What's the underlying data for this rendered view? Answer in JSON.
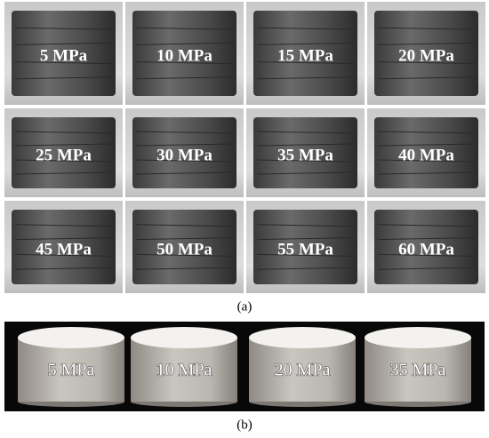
{
  "panel_a": {
    "labels": [
      "5 MPa",
      "10 MPa",
      "15 MPa",
      "20 MPa",
      "25 MPa",
      "30 MPa",
      "35 MPa",
      "40 MPa",
      "45 MPa",
      "50 MPa",
      "55 MPa",
      "60 MPa"
    ],
    "caption": "(a)"
  },
  "panel_b": {
    "labels": [
      "5 MPa",
      "10 MPa",
      "20 MPa",
      "35 MPa"
    ],
    "caption": "(b)"
  }
}
